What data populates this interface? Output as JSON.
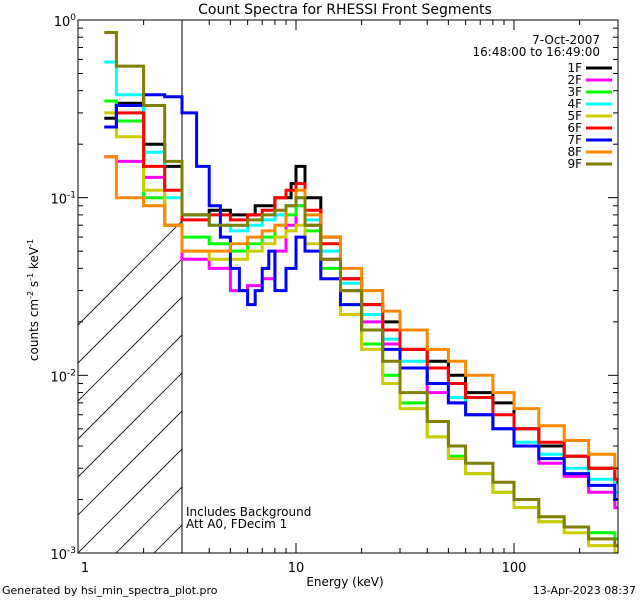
{
  "chart_data": {
    "type": "line",
    "title": "Count Spectra for RHESSI Front Segments",
    "xlabel": "Energy (keV)",
    "ylabel": "counts cm⁻² s⁻¹ keV⁻¹",
    "ylabel_parts": [
      "counts cm",
      "-2",
      " s",
      "-1",
      " keV",
      "-1"
    ],
    "xscale": "log",
    "yscale": "log",
    "xlim": [
      1,
      300
    ],
    "ylim": [
      0.001,
      1
    ],
    "xticks": [
      {
        "v": 10,
        "label": "10"
      },
      {
        "v": 100,
        "label": "100"
      }
    ],
    "yticks": [
      {
        "v": 0.001,
        "base": "10",
        "exp": "-3"
      },
      {
        "v": 0.01,
        "base": "10",
        "exp": "-2"
      },
      {
        "v": 0.1,
        "base": "10",
        "exp": "-1"
      },
      {
        "v": 1,
        "base": "10",
        "exp": "0"
      }
    ],
    "x_corner_label": "1",
    "hatched_region": [
      1,
      3
    ],
    "date": "7-Oct-2007",
    "time_range": "16:48:00 to 16:49:00",
    "annotations": [
      "Includes Background",
      "Att A0, FDecim 1"
    ],
    "series": [
      {
        "name": "1F",
        "color": "#000000",
        "points": [
          [
            1.32,
            0.28
          ],
          [
            1.5,
            0.34
          ],
          [
            2.0,
            0.2
          ],
          [
            2.5,
            0.15
          ],
          [
            3.0,
            0.08
          ],
          [
            4,
            0.085
          ],
          [
            5,
            0.08
          ],
          [
            6.5,
            0.09
          ],
          [
            8,
            0.1
          ],
          [
            9.5,
            0.12
          ],
          [
            10,
            0.15
          ],
          [
            11,
            0.1
          ],
          [
            13,
            0.06
          ],
          [
            16,
            0.035
          ],
          [
            20,
            0.025
          ],
          [
            25,
            0.02
          ],
          [
            30,
            0.014
          ],
          [
            40,
            0.012
          ],
          [
            50,
            0.01
          ],
          [
            60,
            0.008
          ],
          [
            70,
            0.008
          ],
          [
            80,
            0.007
          ],
          [
            100,
            0.005
          ],
          [
            130,
            0.004
          ],
          [
            170,
            0.0035
          ],
          [
            220,
            0.003
          ],
          [
            290,
            0.0025
          ]
        ]
      },
      {
        "name": "2F",
        "color": "#ff00ff",
        "points": [
          [
            1.32,
            0.17
          ],
          [
            1.5,
            0.16
          ],
          [
            2.0,
            0.13
          ],
          [
            2.5,
            0.07
          ],
          [
            3.0,
            0.045
          ],
          [
            4,
            0.04
          ],
          [
            5,
            0.03
          ],
          [
            6,
            0.032
          ],
          [
            7,
            0.035
          ],
          [
            8,
            0.05
          ],
          [
            9,
            0.07
          ],
          [
            10,
            0.09
          ],
          [
            11,
            0.07
          ],
          [
            13,
            0.045
          ],
          [
            16,
            0.03
          ],
          [
            20,
            0.02
          ],
          [
            25,
            0.015
          ],
          [
            30,
            0.011
          ],
          [
            40,
            0.008
          ],
          [
            50,
            0.007
          ],
          [
            60,
            0.006
          ],
          [
            80,
            0.005
          ],
          [
            100,
            0.004
          ],
          [
            130,
            0.0032
          ],
          [
            170,
            0.0027
          ],
          [
            220,
            0.0022
          ],
          [
            290,
            0.0018
          ]
        ]
      },
      {
        "name": "3F",
        "color": "#00ff00",
        "points": [
          [
            1.32,
            0.35
          ],
          [
            1.5,
            0.27
          ],
          [
            2.0,
            0.1
          ],
          [
            2.5,
            0.07
          ],
          [
            3.0,
            0.06
          ],
          [
            4,
            0.055
          ],
          [
            5,
            0.05
          ],
          [
            6,
            0.055
          ],
          [
            7,
            0.06
          ],
          [
            8,
            0.07
          ],
          [
            9,
            0.08
          ],
          [
            10,
            0.09
          ],
          [
            11,
            0.065
          ],
          [
            13,
            0.04
          ],
          [
            16,
            0.025
          ],
          [
            20,
            0.015
          ],
          [
            25,
            0.01
          ],
          [
            30,
            0.007
          ],
          [
            40,
            0.0045
          ],
          [
            50,
            0.0035
          ],
          [
            60,
            0.0028
          ],
          [
            80,
            0.0022
          ],
          [
            100,
            0.0018
          ],
          [
            130,
            0.0015
          ],
          [
            170,
            0.0014
          ],
          [
            220,
            0.0013
          ],
          [
            290,
            0.0012
          ]
        ]
      },
      {
        "name": "4F",
        "color": "#00ffff",
        "points": [
          [
            1.32,
            0.58
          ],
          [
            1.5,
            0.38
          ],
          [
            2.0,
            0.18
          ],
          [
            2.5,
            0.1
          ],
          [
            3.0,
            0.08
          ],
          [
            4,
            0.07
          ],
          [
            5,
            0.065
          ],
          [
            6,
            0.07
          ],
          [
            7,
            0.075
          ],
          [
            8,
            0.08
          ],
          [
            9,
            0.09
          ],
          [
            10,
            0.1
          ],
          [
            11,
            0.075
          ],
          [
            13,
            0.05
          ],
          [
            16,
            0.033
          ],
          [
            20,
            0.022
          ],
          [
            25,
            0.016
          ],
          [
            30,
            0.012
          ],
          [
            40,
            0.009
          ],
          [
            50,
            0.0075
          ],
          [
            60,
            0.006
          ],
          [
            80,
            0.005
          ],
          [
            100,
            0.0042
          ],
          [
            130,
            0.0036
          ],
          [
            170,
            0.003
          ],
          [
            220,
            0.0026
          ],
          [
            290,
            0.0022
          ]
        ]
      },
      {
        "name": "5F",
        "color": "#cccc00",
        "points": [
          [
            1.32,
            0.3
          ],
          [
            1.5,
            0.22
          ],
          [
            2.0,
            0.11
          ],
          [
            2.5,
            0.07
          ],
          [
            3.0,
            0.05
          ],
          [
            4,
            0.045
          ],
          [
            5,
            0.045
          ],
          [
            6,
            0.05
          ],
          [
            7,
            0.055
          ],
          [
            8,
            0.06
          ],
          [
            9,
            0.065
          ],
          [
            10,
            0.07
          ],
          [
            11,
            0.055
          ],
          [
            13,
            0.035
          ],
          [
            16,
            0.022
          ],
          [
            20,
            0.014
          ],
          [
            25,
            0.009
          ],
          [
            30,
            0.0065
          ],
          [
            40,
            0.0045
          ],
          [
            50,
            0.0034
          ],
          [
            60,
            0.0028
          ],
          [
            80,
            0.0022
          ],
          [
            100,
            0.0018
          ],
          [
            130,
            0.0015
          ],
          [
            170,
            0.0013
          ],
          [
            220,
            0.0011
          ],
          [
            290,
            0.001
          ]
        ]
      },
      {
        "name": "6F",
        "color": "#ff0000",
        "points": [
          [
            1.32,
            0.25
          ],
          [
            1.5,
            0.3
          ],
          [
            2.0,
            0.15
          ],
          [
            2.5,
            0.11
          ],
          [
            3.0,
            0.075
          ],
          [
            4,
            0.08
          ],
          [
            5,
            0.075
          ],
          [
            6,
            0.08
          ],
          [
            7,
            0.085
          ],
          [
            8,
            0.1
          ],
          [
            9,
            0.11
          ],
          [
            10,
            0.12
          ],
          [
            11,
            0.085
          ],
          [
            13,
            0.055
          ],
          [
            16,
            0.035
          ],
          [
            20,
            0.025
          ],
          [
            25,
            0.018
          ],
          [
            30,
            0.014
          ],
          [
            40,
            0.011
          ],
          [
            50,
            0.009
          ],
          [
            60,
            0.0075
          ],
          [
            80,
            0.006
          ],
          [
            100,
            0.005
          ],
          [
            130,
            0.0042
          ],
          [
            170,
            0.0035
          ],
          [
            220,
            0.003
          ],
          [
            290,
            0.0026
          ]
        ]
      },
      {
        "name": "7F",
        "color": "#0000ff",
        "points": [
          [
            1.32,
            0.25
          ],
          [
            1.5,
            0.33
          ],
          [
            2.0,
            0.38
          ],
          [
            2.5,
            0.37
          ],
          [
            3.0,
            0.3
          ],
          [
            3.5,
            0.15
          ],
          [
            4,
            0.09
          ],
          [
            4.5,
            0.06
          ],
          [
            5,
            0.04
          ],
          [
            5.5,
            0.03
          ],
          [
            6,
            0.025
          ],
          [
            6.5,
            0.03
          ],
          [
            7,
            0.04
          ],
          [
            7.5,
            0.05
          ],
          [
            8,
            0.03
          ],
          [
            9,
            0.04
          ],
          [
            10,
            0.06
          ],
          [
            11,
            0.05
          ],
          [
            13,
            0.035
          ],
          [
            16,
            0.025
          ],
          [
            20,
            0.018
          ],
          [
            25,
            0.014
          ],
          [
            30,
            0.011
          ],
          [
            40,
            0.009
          ],
          [
            50,
            0.007
          ],
          [
            60,
            0.006
          ],
          [
            80,
            0.005
          ],
          [
            100,
            0.004
          ],
          [
            130,
            0.0034
          ],
          [
            170,
            0.0028
          ],
          [
            220,
            0.0024
          ],
          [
            290,
            0.002
          ]
        ]
      },
      {
        "name": "8F",
        "color": "#ff8800",
        "points": [
          [
            1.32,
            0.17
          ],
          [
            1.5,
            0.1
          ],
          [
            2.0,
            0.09
          ],
          [
            2.5,
            0.07
          ],
          [
            3.0,
            0.05
          ],
          [
            4,
            0.05
          ],
          [
            5,
            0.055
          ],
          [
            6,
            0.06
          ],
          [
            7,
            0.065
          ],
          [
            8,
            0.07
          ],
          [
            9,
            0.09
          ],
          [
            10,
            0.11
          ],
          [
            11,
            0.08
          ],
          [
            13,
            0.06
          ],
          [
            16,
            0.04
          ],
          [
            20,
            0.03
          ],
          [
            25,
            0.023
          ],
          [
            30,
            0.018
          ],
          [
            40,
            0.014
          ],
          [
            50,
            0.012
          ],
          [
            60,
            0.01
          ],
          [
            80,
            0.008
          ],
          [
            100,
            0.0065
          ],
          [
            130,
            0.0052
          ],
          [
            170,
            0.0043
          ],
          [
            220,
            0.0036
          ],
          [
            290,
            0.003
          ]
        ]
      },
      {
        "name": "9F",
        "color": "#7f7f00",
        "points": [
          [
            1.32,
            0.85
          ],
          [
            1.5,
            0.55
          ],
          [
            2.0,
            0.33
          ],
          [
            2.5,
            0.16
          ],
          [
            3.0,
            0.08
          ],
          [
            4,
            0.07
          ],
          [
            5,
            0.07
          ],
          [
            6,
            0.075
          ],
          [
            7,
            0.08
          ],
          [
            8,
            0.085
          ],
          [
            9,
            0.09
          ],
          [
            10,
            0.1
          ],
          [
            11,
            0.07
          ],
          [
            13,
            0.045
          ],
          [
            16,
            0.03
          ],
          [
            20,
            0.018
          ],
          [
            25,
            0.012
          ],
          [
            30,
            0.008
          ],
          [
            40,
            0.0055
          ],
          [
            50,
            0.004
          ],
          [
            60,
            0.0032
          ],
          [
            80,
            0.0025
          ],
          [
            100,
            0.002
          ],
          [
            130,
            0.0016
          ],
          [
            170,
            0.0014
          ],
          [
            220,
            0.0012
          ],
          [
            290,
            0.0011
          ]
        ]
      }
    ]
  },
  "footer": {
    "generated_by": "Generated by hsi_min_spectra_plot.pro",
    "timestamp": "13-Apr-2023 08:37"
  }
}
